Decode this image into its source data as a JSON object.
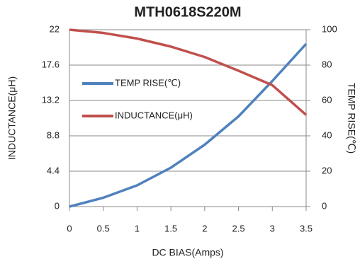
{
  "chart_data": {
    "type": "line",
    "title": "MTH0618S220M",
    "x_label": "DC BIAS(Amps)",
    "y_label": "INDUCTANCE(μH)",
    "y2_label": "TEMP RISE(℃)",
    "x": [
      0,
      0.5,
      1,
      1.5,
      2,
      2.5,
      3,
      3.5
    ],
    "xlim": [
      0,
      3.5
    ],
    "xticks": [
      0,
      0.5,
      1,
      1.5,
      2,
      2.5,
      3,
      3.5
    ],
    "ylim": [
      0,
      22
    ],
    "yticks": [
      0,
      4.4,
      8.8,
      13.2,
      17.6,
      22
    ],
    "y2lim": [
      0,
      100
    ],
    "y2ticks": [
      0,
      20,
      40,
      60,
      80,
      100
    ],
    "grid": true,
    "legend": "left",
    "series": [
      {
        "name": "TEMP RISE(℃)",
        "color": "#4f81bd",
        "axis": "y2",
        "values": [
          0,
          5,
          12,
          22,
          35,
          51,
          71,
          92
        ]
      },
      {
        "name": "INDUCTANCE(μH)",
        "color": "#c0504d",
        "values": [
          22,
          21.6,
          20.9,
          19.9,
          18.6,
          16.9,
          15.1,
          11.4
        ]
      }
    ]
  }
}
